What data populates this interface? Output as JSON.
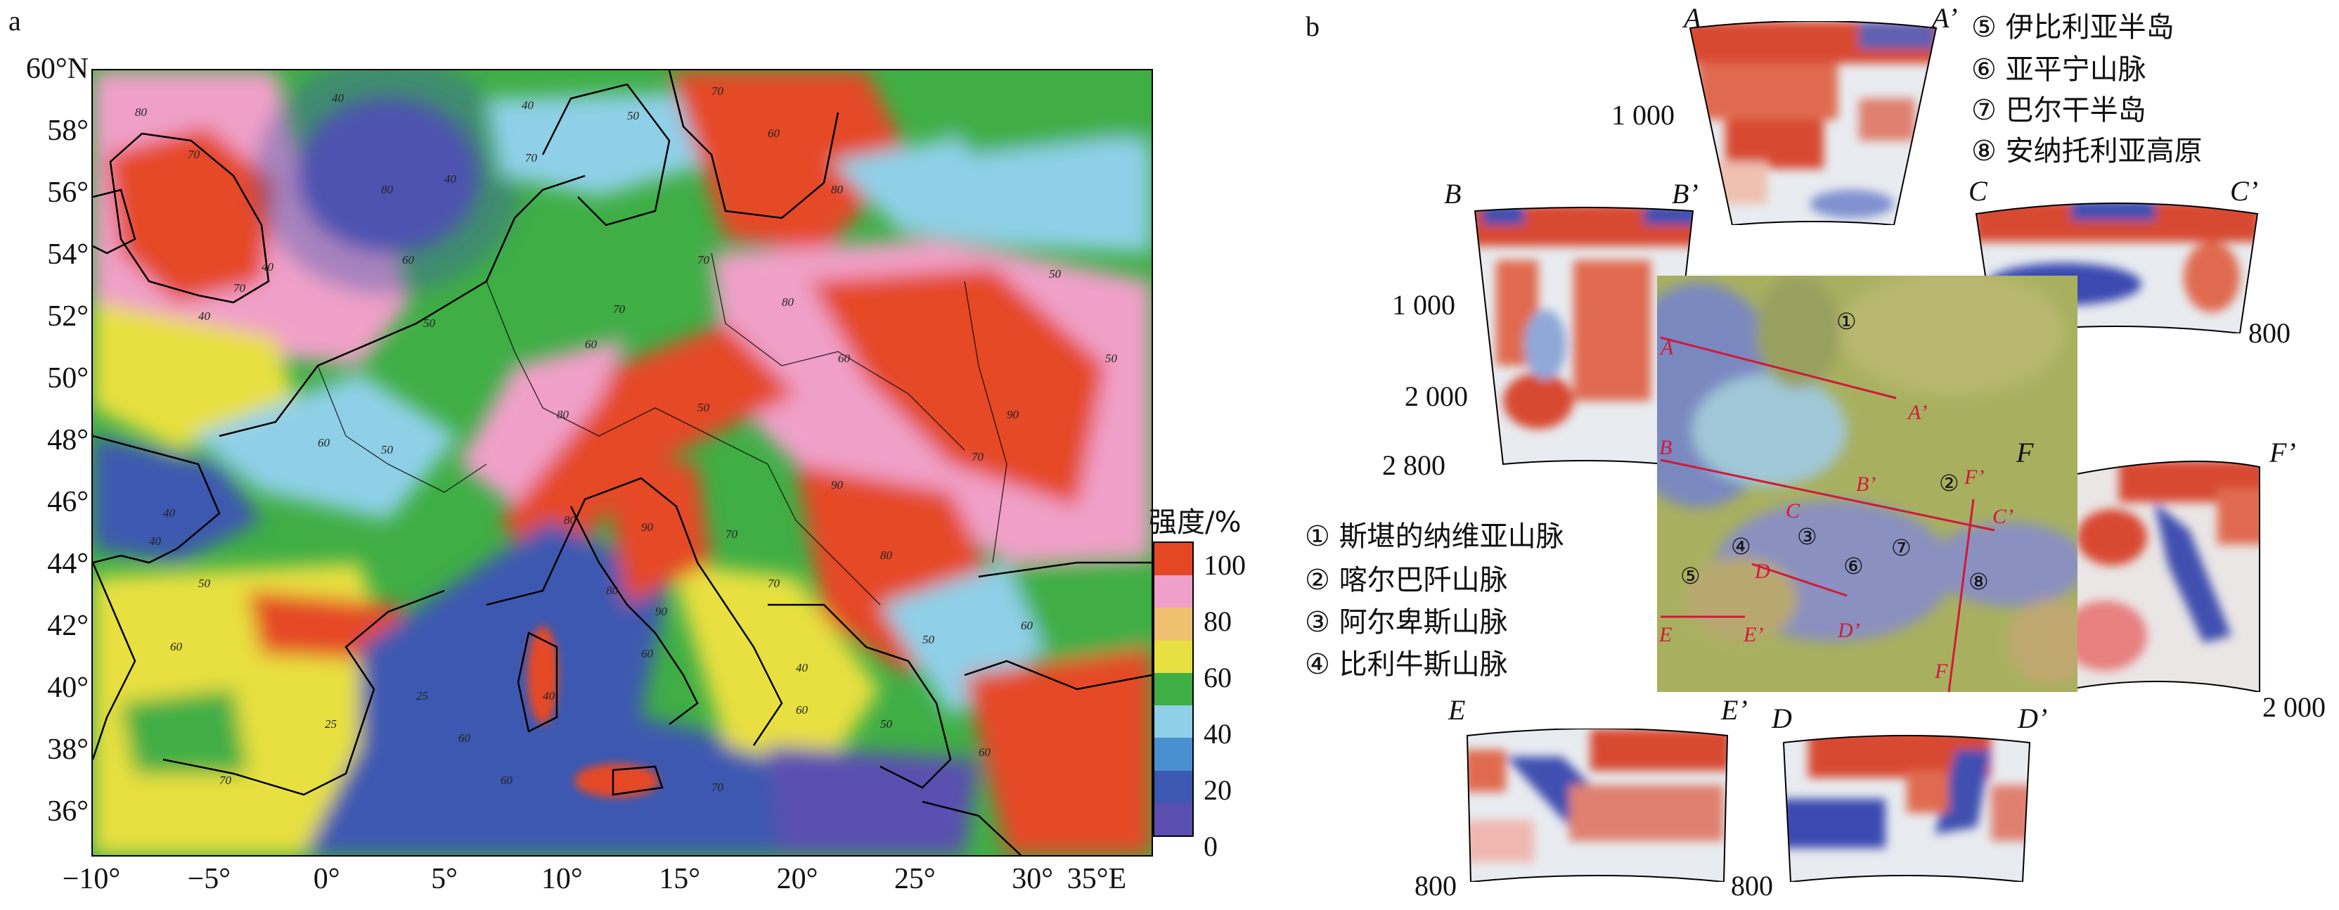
{
  "panel_a": {
    "label": "a",
    "lat_ticks": [
      "60°N",
      "58°",
      "56°",
      "54°",
      "52°",
      "50°",
      "48°",
      "46°",
      "44°",
      "42°",
      "40°",
      "38°",
      "36°"
    ],
    "lon_ticks": [
      "−10°",
      "−5°",
      "0°",
      "5°",
      "10°",
      "15°",
      "20°",
      "25°",
      "30°",
      "35°E"
    ],
    "legend_title": "强度/%",
    "legend_values": [
      "100",
      "80",
      "60",
      "40",
      "20",
      "0"
    ],
    "contour_labels": [
      "80",
      "70",
      "40",
      "40",
      "70",
      "40",
      "80",
      "50",
      "70",
      "60",
      "80",
      "60",
      "40",
      "70",
      "40",
      "50",
      "70",
      "70",
      "80",
      "60",
      "50",
      "70",
      "90",
      "50",
      "50",
      "60",
      "40",
      "80",
      "60",
      "50",
      "40",
      "50",
      "60",
      "80",
      "90",
      "70",
      "90",
      "80",
      "50",
      "60",
      "90",
      "80",
      "60",
      "70",
      "40",
      "25",
      "25",
      "70",
      "40",
      "60",
      "60",
      "70",
      "60",
      "50",
      "60"
    ],
    "colors": {
      "c0": "#5a4fb0",
      "c20": "#3d58b0",
      "c40": "#8fd0e8",
      "c60": "#3fae45",
      "c70": "#e8e040",
      "c80": "#f0a0c8",
      "c100": "#e54825"
    }
  },
  "panel_b": {
    "label": "b",
    "regions": [
      "⑤ 伊比利亚半岛",
      "⑥ 亚平宁山脉",
      "⑦ 巴尔干半岛",
      "⑧ 安纳托利亚高原"
    ],
    "mountains": [
      "① 斯堪的纳维亚山脉",
      "② 喀尔巴阡山脉",
      "③ 阿尔卑斯山脉",
      "④ 比利牛斯山脉"
    ],
    "section_labels": {
      "A": "A",
      "A2": "A’",
      "B": "B",
      "B2": "B’",
      "C": "C",
      "C2": "C’",
      "D": "D",
      "D2": "D’",
      "E": "E",
      "E2": "E’",
      "F": "F",
      "F2": "F’"
    },
    "depths": {
      "a1000": "1 000",
      "b1000": "1 000",
      "b2000": "2 000",
      "b2800": "2 800",
      "c800": "800",
      "f2000": "2 000",
      "e800": "800",
      "d800": "800"
    },
    "map_numbers": [
      "①",
      "②",
      "③",
      "④",
      "⑤",
      "⑥",
      "⑦",
      "⑧"
    ],
    "map_red_labels": {
      "A": "A",
      "A2": "A’",
      "B": "B",
      "B2": "B’",
      "C": "C",
      "C2": "C’",
      "D": "D",
      "D2": "D’",
      "E": "E",
      "E2": "E’",
      "F": "F",
      "F2": "F’"
    }
  }
}
